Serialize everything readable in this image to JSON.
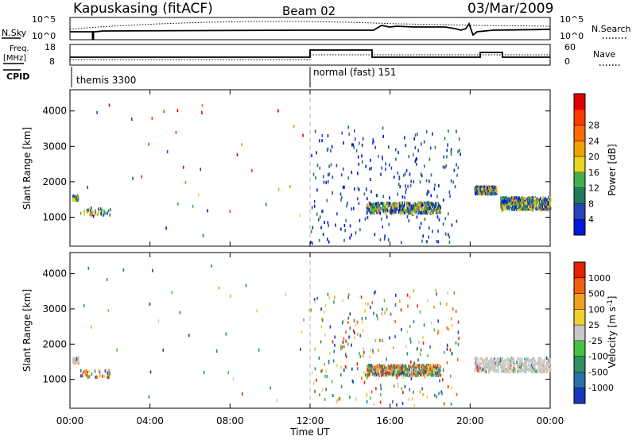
{
  "header": {
    "station": "Kapuskasing (fitACF)",
    "beam": "Beam 02",
    "date": "03/Mar/2009"
  },
  "top_panels": {
    "nsky_label": "N.Sky",
    "nsearch_label": "N.Search",
    "noise_ticks": [
      "10^5",
      "10^0"
    ],
    "freq_label_1": "Freq.",
    "freq_label_2": "[MHz]",
    "freq_ticks": [
      "18",
      "8"
    ],
    "nave_label": "Nave",
    "nave_ticks": [
      "60",
      "0"
    ],
    "cpid_label": "CPID",
    "cpid_segments": [
      {
        "name": "themis 3300",
        "start_hour": 0,
        "end_hour": 12
      },
      {
        "name": "normal (fast) 151",
        "start_hour": 12,
        "end_hour": 24
      }
    ]
  },
  "axes": {
    "ylabel": "Slant Range [km]",
    "xlabel": "Time UT",
    "x_ticks": [
      "00:00",
      "04:00",
      "08:00",
      "12:00",
      "16:00",
      "20:00",
      "00:00"
    ],
    "y_ticks": [
      "1000",
      "2000",
      "3000",
      "4000"
    ]
  },
  "colorbars": {
    "power": {
      "label": "Power [dB]",
      "tick_labels": [
        "4",
        "8",
        "12",
        "16",
        "20",
        "24",
        "28"
      ],
      "colors": [
        "#0018d8",
        "#2844b8",
        "#207a60",
        "#40b050",
        "#e8d820",
        "#f0a000",
        "#ff6a00",
        "#ff3a00",
        "#e00000"
      ]
    },
    "velocity": {
      "label": "Velocity [m s",
      "label_sup": "-1",
      "label_end": "]",
      "tick_labels": [
        "1000",
        "500",
        "100",
        "25",
        "-25",
        "-100",
        "-500",
        "-1000"
      ],
      "colors": [
        "#1838c0",
        "#2870a8",
        "#309060",
        "#48c040",
        "#c8c8c8",
        "#f0d030",
        "#f0a020",
        "#f06010",
        "#e82000"
      ]
    }
  },
  "chart_data": [
    {
      "type": "scatter",
      "title": "Power",
      "xlabel": "Time UT",
      "ylabel": "Slant Range [km]",
      "xlim_hours": [
        0,
        24
      ],
      "ylim_km": [
        180,
        4600
      ],
      "colorbar_range": [
        0,
        30
      ],
      "clusters": [
        {
          "t": [
            0.1,
            0.4
          ],
          "r": [
            1500,
            1650
          ],
          "value": "8-16",
          "density": "medium"
        },
        {
          "t": [
            0.5,
            2.0
          ],
          "r": [
            1100,
            1300
          ],
          "value": "12-20",
          "density": "medium"
        },
        {
          "t": [
            12.0,
            19.5
          ],
          "r": [
            300,
            3600
          ],
          "value": "4-8",
          "density": "sparse"
        },
        {
          "t": [
            14.8,
            18.5
          ],
          "r": [
            1150,
            1450
          ],
          "value": "4-20",
          "density": "dense"
        },
        {
          "t": [
            20.2,
            21.3
          ],
          "r": [
            1700,
            1900
          ],
          "value": "4-8",
          "density": "dense"
        },
        {
          "t": [
            21.5,
            24.0
          ],
          "r": [
            1250,
            1600
          ],
          "value": "4-20",
          "density": "dense"
        }
      ]
    },
    {
      "type": "scatter",
      "title": "Velocity",
      "xlabel": "Time UT",
      "ylabel": "Slant Range [km]",
      "xlim_hours": [
        0,
        24
      ],
      "ylim_km": [
        180,
        4600
      ],
      "colorbar_range": [
        -1000,
        1000
      ],
      "clusters": [
        {
          "t": [
            0.1,
            0.4
          ],
          "r": [
            1500,
            1650
          ],
          "value": "-25 to 25",
          "density": "medium"
        },
        {
          "t": [
            0.5,
            2.0
          ],
          "r": [
            1100,
            1300
          ],
          "value": "-100 to 100",
          "density": "medium"
        },
        {
          "t": [
            12.0,
            19.5
          ],
          "r": [
            300,
            3600
          ],
          "value": "-1000 to 1000",
          "density": "sparse"
        },
        {
          "t": [
            14.8,
            18.5
          ],
          "r": [
            1150,
            1450
          ],
          "value": "-500 to 500",
          "density": "dense"
        },
        {
          "t": [
            20.2,
            24.0
          ],
          "r": [
            1250,
            1650
          ],
          "value": "-25 to 25",
          "density": "dense"
        }
      ]
    }
  ]
}
